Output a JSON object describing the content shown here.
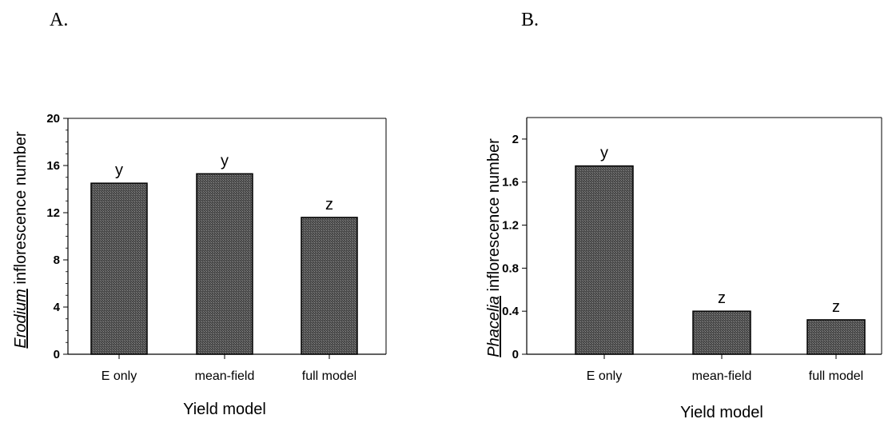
{
  "panels": {
    "a_label": "A.",
    "b_label": "B."
  },
  "colors": {
    "bar_fill": "#5a5a5a",
    "bar_stroke": "#000000",
    "axis": "#000000"
  },
  "chart_data": [
    {
      "type": "bar",
      "panel": "A.",
      "categories": [
        "E only",
        "mean-field",
        "full model"
      ],
      "values": [
        14.5,
        15.3,
        11.6
      ],
      "significance": [
        "y",
        "y",
        "z"
      ],
      "xlabel": "Yield model",
      "ylabel_italic_underlined": "Erodium",
      "ylabel_rest": " inflorescence number",
      "ylim": [
        0,
        20
      ],
      "yticks": [
        "0",
        "4",
        "8",
        "12",
        "16",
        "20"
      ],
      "ytick_values": [
        0,
        4,
        8,
        12,
        16,
        20
      ],
      "grid": false,
      "legend": "none"
    },
    {
      "type": "bar",
      "panel": "B.",
      "categories": [
        "E only",
        "mean-field",
        "full model"
      ],
      "values": [
        1.75,
        0.4,
        0.32
      ],
      "significance": [
        "y",
        "z",
        "z"
      ],
      "xlabel": "Yield model",
      "ylabel_italic_underlined": "Phacelia",
      "ylabel_rest": " inflorescence number",
      "ylim": [
        0,
        2.2
      ],
      "yticks": [
        "0",
        "0.4",
        "0.8",
        "1.2",
        "1.6",
        "2"
      ],
      "ytick_values": [
        0,
        0.4,
        0.8,
        1.2,
        1.6,
        2
      ],
      "grid": false,
      "legend": "none"
    }
  ]
}
